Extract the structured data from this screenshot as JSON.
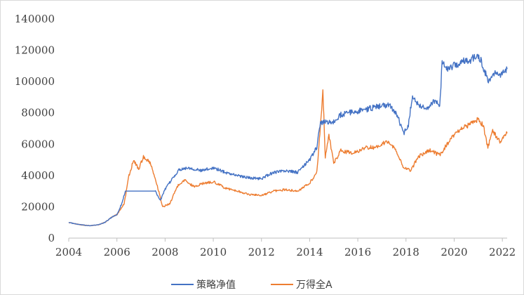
{
  "chart_data": {
    "type": "line",
    "title": "",
    "xlabel": "",
    "ylabel": "",
    "xlim": [
      2004,
      2022.2
    ],
    "ylim": [
      0,
      140000
    ],
    "grid": false,
    "legend_position": "bottom",
    "x_ticks": [
      "2004",
      "2006",
      "2008",
      "2010",
      "2012",
      "2014",
      "2016",
      "2018",
      "2020",
      "2022"
    ],
    "y_ticks": [
      "0",
      "20000",
      "40000",
      "60000",
      "80000",
      "100000",
      "120000",
      "140000"
    ],
    "series": [
      {
        "name": "策略净值",
        "color": "#4472c4",
        "points": [
          [
            2004.0,
            10000
          ],
          [
            2004.3,
            9000
          ],
          [
            2004.6,
            8300
          ],
          [
            2004.9,
            8000
          ],
          [
            2005.2,
            8400
          ],
          [
            2005.5,
            10000
          ],
          [
            2005.8,
            13500
          ],
          [
            2006.0,
            15000
          ],
          [
            2006.2,
            22000
          ],
          [
            2006.35,
            30000
          ],
          [
            2007.0,
            30000
          ],
          [
            2007.6,
            30000
          ],
          [
            2007.8,
            24000
          ],
          [
            2008.0,
            31000
          ],
          [
            2008.3,
            38000
          ],
          [
            2008.6,
            44000
          ],
          [
            2009.0,
            45000
          ],
          [
            2009.5,
            43000
          ],
          [
            2010.0,
            45000
          ],
          [
            2010.5,
            42000
          ],
          [
            2011.0,
            40000
          ],
          [
            2011.5,
            38500
          ],
          [
            2012.0,
            38000
          ],
          [
            2012.5,
            42000
          ],
          [
            2013.0,
            43000
          ],
          [
            2013.5,
            42000
          ],
          [
            2014.0,
            50000
          ],
          [
            2014.3,
            58000
          ],
          [
            2014.45,
            74000
          ],
          [
            2015.0,
            74000
          ],
          [
            2015.3,
            79000
          ],
          [
            2015.8,
            80500
          ],
          [
            2016.3,
            82000
          ],
          [
            2016.8,
            84000
          ],
          [
            2017.3,
            85000
          ],
          [
            2017.6,
            80000
          ],
          [
            2017.9,
            67000
          ],
          [
            2018.1,
            72000
          ],
          [
            2018.25,
            90000
          ],
          [
            2018.5,
            86000
          ],
          [
            2018.8,
            82000
          ],
          [
            2019.2,
            88000
          ],
          [
            2019.4,
            84000
          ],
          [
            2019.5,
            112000
          ],
          [
            2019.8,
            108000
          ],
          [
            2020.2,
            112000
          ],
          [
            2020.7,
            114000
          ],
          [
            2021.0,
            117000
          ],
          [
            2021.2,
            110000
          ],
          [
            2021.4,
            100000
          ],
          [
            2021.7,
            107000
          ],
          [
            2021.9,
            103000
          ],
          [
            2022.2,
            108000
          ]
        ]
      },
      {
        "name": "万得全A",
        "color": "#ed7d31",
        "points": [
          [
            2004.0,
            10000
          ],
          [
            2004.3,
            9000
          ],
          [
            2004.6,
            8300
          ],
          [
            2004.9,
            8000
          ],
          [
            2005.2,
            8400
          ],
          [
            2005.5,
            10000
          ],
          [
            2005.8,
            13500
          ],
          [
            2006.0,
            15000
          ],
          [
            2006.3,
            22000
          ],
          [
            2006.5,
            40000
          ],
          [
            2006.7,
            50000
          ],
          [
            2006.9,
            44000
          ],
          [
            2007.1,
            52000
          ],
          [
            2007.4,
            48000
          ],
          [
            2007.7,
            32000
          ],
          [
            2007.9,
            20000
          ],
          [
            2008.2,
            22000
          ],
          [
            2008.5,
            33000
          ],
          [
            2008.8,
            37000
          ],
          [
            2009.2,
            33000
          ],
          [
            2009.6,
            35000
          ],
          [
            2010.0,
            36000
          ],
          [
            2010.5,
            32000
          ],
          [
            2011.0,
            30000
          ],
          [
            2011.5,
            28000
          ],
          [
            2012.0,
            27000
          ],
          [
            2012.5,
            30000
          ],
          [
            2013.0,
            31000
          ],
          [
            2013.5,
            30000
          ],
          [
            2014.0,
            35000
          ],
          [
            2014.3,
            42000
          ],
          [
            2014.45,
            72000
          ],
          [
            2014.55,
            94000
          ],
          [
            2014.65,
            52000
          ],
          [
            2014.8,
            66000
          ],
          [
            2015.0,
            48000
          ],
          [
            2015.3,
            56000
          ],
          [
            2015.8,
            54000
          ],
          [
            2016.3,
            58000
          ],
          [
            2016.8,
            58000
          ],
          [
            2017.2,
            62000
          ],
          [
            2017.5,
            58000
          ],
          [
            2017.9,
            45000
          ],
          [
            2018.2,
            43000
          ],
          [
            2018.5,
            52000
          ],
          [
            2019.0,
            56000
          ],
          [
            2019.4,
            53000
          ],
          [
            2019.7,
            60000
          ],
          [
            2020.0,
            66000
          ],
          [
            2020.3,
            70000
          ],
          [
            2020.6,
            72000
          ],
          [
            2021.0,
            76000
          ],
          [
            2021.2,
            72000
          ],
          [
            2021.4,
            58000
          ],
          [
            2021.6,
            68000
          ],
          [
            2021.9,
            62000
          ],
          [
            2022.2,
            67000
          ]
        ]
      }
    ]
  }
}
